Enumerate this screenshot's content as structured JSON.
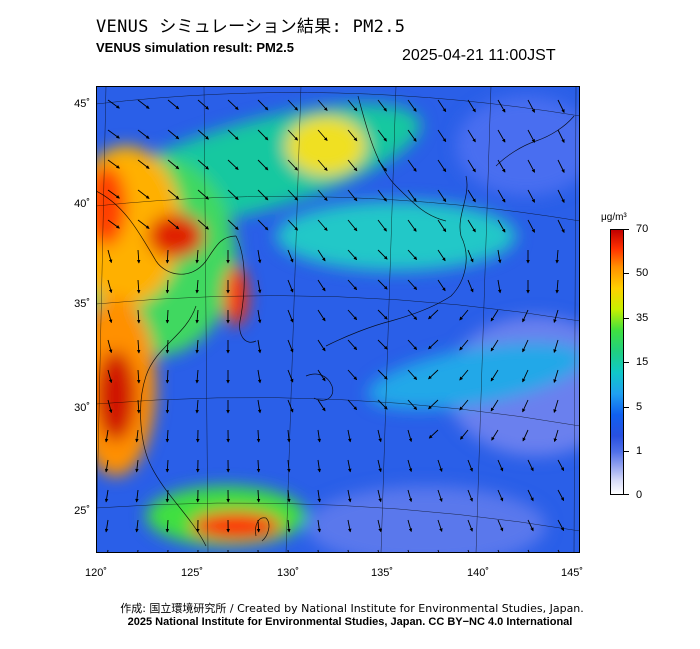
{
  "header": {
    "title_jp": "VENUS シミュレーション結果: PM2.5",
    "title_en": "VENUS simulation result: PM2.5",
    "timestamp": "2025-04-21 11:00JST"
  },
  "map": {
    "lat_labels": [
      "45˚",
      "40˚",
      "35˚",
      "30˚",
      "25˚"
    ],
    "lon_labels": [
      "120˚",
      "125˚",
      "130˚",
      "135˚",
      "140˚",
      "145˚"
    ],
    "colors": {
      "sea_low": "#2a5fe8",
      "clean": "#5577ee",
      "moderate": "#18c8b0",
      "elevated": "#40e040",
      "high": "#ffd000",
      "very_high": "#ff3000",
      "extreme": "#c00000"
    }
  },
  "colorbar": {
    "unit": "μg/m³",
    "ticks": [
      "70",
      "50",
      "35",
      "15",
      "5",
      "1",
      "0"
    ]
  },
  "footer": {
    "credit_jp": "作成: 国立環境研究所 / Created by National Institute for Environmental Studies, Japan.",
    "credit_en": "2025 National Institute for Environmental Studies, Japan. CC BY−NC 4.0 International"
  }
}
